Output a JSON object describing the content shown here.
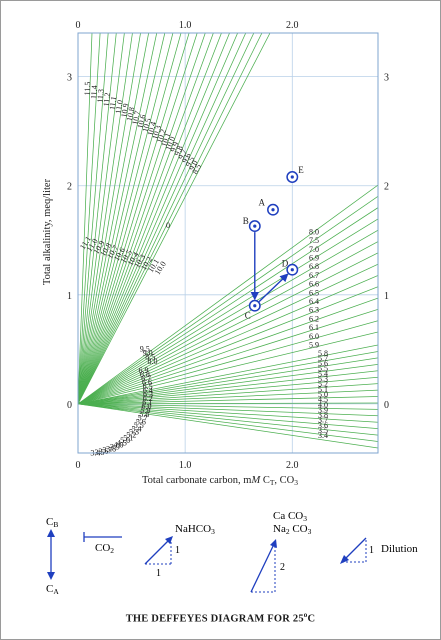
{
  "chart_data": {
    "type": "line",
    "title": "THE DEFFEYES DIAGRAM FOR 25",
    "title_superscript": "o",
    "title_suffix": "C",
    "xlabel_prefix": "Total carbonate carbon, m",
    "xlabel_italic": "M",
    "xlabel_mid": " C",
    "xlabel_sub": "T",
    "xlabel_suffix": ", CO",
    "xlabel_sub2": "3",
    "ylabel": "Total alkalinity, meq/liter",
    "xlim": [
      0,
      2.8
    ],
    "ylim": [
      -0.45,
      3.4
    ],
    "x_ticks": [
      "0",
      "1.0",
      "2.0"
    ],
    "x_tick_values": [
      0,
      1,
      2
    ],
    "y_ticks": [
      "0",
      "1",
      "2",
      "3"
    ],
    "y_tick_values": [
      0,
      1,
      2,
      3
    ],
    "grid": true,
    "pH_lines_upper_top": [
      "11.5",
      "11.4",
      "11.3",
      "11.2",
      "11.1",
      "11.0",
      "10.9",
      "10.8",
      "10.7",
      "10.6",
      "10.5",
      "10.4",
      "10.3",
      "10.2",
      "10.1",
      "10.0",
      "9.9",
      "9.8",
      "9.7",
      "9.6",
      "9.5",
      "9.0",
      "8.5"
    ],
    "pH_lines_upper_right": [
      "8.0",
      "7.5",
      "7.0",
      "6.9",
      "6.8",
      "6.7",
      "6.6",
      "6.5",
      "6.4",
      "6.3",
      "6.2",
      "6.1",
      "6.0",
      "5.9"
    ],
    "pH_lines_lower_right": [
      "5.8",
      "5.7",
      "5.6",
      "5.5",
      "5.4",
      "5.3",
      "5.2",
      "5.1",
      "5.0",
      "4.5",
      "4.0",
      "3.9",
      "3.8",
      "3.7",
      "3.6",
      "3.5",
      "3.4"
    ],
    "left_cluster_a": [
      "11.1",
      "11.0",
      "10.9",
      "10.8",
      "10.7",
      "10.6",
      "10.5",
      "10.4",
      "10.3",
      "10.2",
      "10.1",
      "10.0"
    ],
    "left_cluster_b": [
      "9.5",
      "9.0",
      "8.5",
      "8.0",
      "6.9",
      "6.8",
      "6.7",
      "6.6",
      "6.5",
      "6.4",
      "6.3",
      "6.2",
      "6.1",
      "6.0",
      "5.9",
      "5.8",
      "5.7",
      "5.6",
      "5.5",
      "5.4",
      "5.3",
      "5.2",
      "5.1",
      "5.0",
      "4.5",
      "4.0",
      "3.9",
      "3.8",
      "3.7",
      "3.6",
      "3.5",
      "3.4"
    ],
    "zero_label": "0",
    "points": [
      {
        "label": "A",
        "x": 1.82,
        "y": 1.78
      },
      {
        "label": "B",
        "x": 1.65,
        "y": 1.63
      },
      {
        "label": "C",
        "x": 1.65,
        "y": 0.9
      },
      {
        "label": "D",
        "x": 2.0,
        "y": 1.23
      },
      {
        "label": "E",
        "x": 2.0,
        "y": 2.08
      }
    ],
    "arrows": [
      {
        "from": "B",
        "to": "C"
      },
      {
        "from": "C",
        "to": "D"
      }
    ],
    "colors": {
      "ph_lines": "#4caf50",
      "points": "#1f3fbf",
      "grid": "#b9d0e8",
      "axis": "#7fa4cf"
    }
  },
  "legend": {
    "cb_main": "C",
    "cb_sub": "B",
    "ca_main": "C",
    "ca_sub": "A",
    "co2_main": "CO",
    "co2_sub": "2",
    "nahco3_main": "NaHCO",
    "nahco3_sub": "3",
    "caco3_line1_main": "Ca CO",
    "caco3_line1_sub": "3",
    "caco3_line2_a": "Na",
    "caco3_line2_sub_a": "2",
    "caco3_line2_b": " CO",
    "caco3_line2_sub_b": "3",
    "one_a": "1",
    "one_b": "1",
    "two": "2",
    "one_c": "1",
    "dilution": "Dilution"
  }
}
